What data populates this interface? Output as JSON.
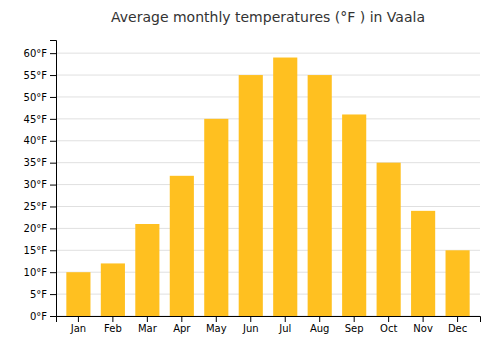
{
  "chart_data": {
    "type": "bar",
    "title": "Average monthly temperatures (°F ) in Vaala",
    "categories": [
      "Jan",
      "Feb",
      "Mar",
      "Apr",
      "May",
      "Jun",
      "Jul",
      "Aug",
      "Sep",
      "Oct",
      "Nov",
      "Dec"
    ],
    "values": [
      10,
      12,
      21,
      32,
      45,
      55,
      59,
      55,
      46,
      35,
      24,
      15
    ],
    "color": "#FFC020",
    "ylim": [
      0,
      63
    ],
    "yticks": [
      {
        "value": 0,
        "label": "0°F"
      },
      {
        "value": 5,
        "label": "5°F"
      },
      {
        "value": 10,
        "label": "10°F"
      },
      {
        "value": 15,
        "label": "15°F"
      },
      {
        "value": 20,
        "label": "20°F"
      },
      {
        "value": 25,
        "label": "25°F"
      },
      {
        "value": 30,
        "label": "30°F"
      },
      {
        "value": 35,
        "label": "35°F"
      },
      {
        "value": 40,
        "label": "40°F"
      },
      {
        "value": 45,
        "label": "45°F"
      },
      {
        "value": 50,
        "label": "50°F"
      },
      {
        "value": 55,
        "label": "55°F"
      },
      {
        "value": 60,
        "label": "60°F"
      }
    ],
    "grid": true
  }
}
